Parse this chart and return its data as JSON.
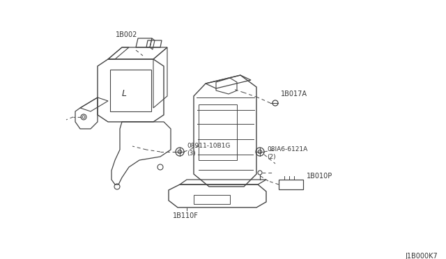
{
  "background_color": "#ffffff",
  "line_color": "#444444",
  "text_color": "#333333",
  "diagram_id": "J1B000K7",
  "label_1b002": "1B002",
  "label_bolt1": "08911-10B1G\n(3)",
  "label_1b017a": "1B017A",
  "label_bolt2": "08IA6-6121A\n(2)",
  "label_1b010p": "1B010P",
  "label_1b110f": "1B110F",
  "fig_width": 6.4,
  "fig_height": 3.72,
  "dpi": 100
}
